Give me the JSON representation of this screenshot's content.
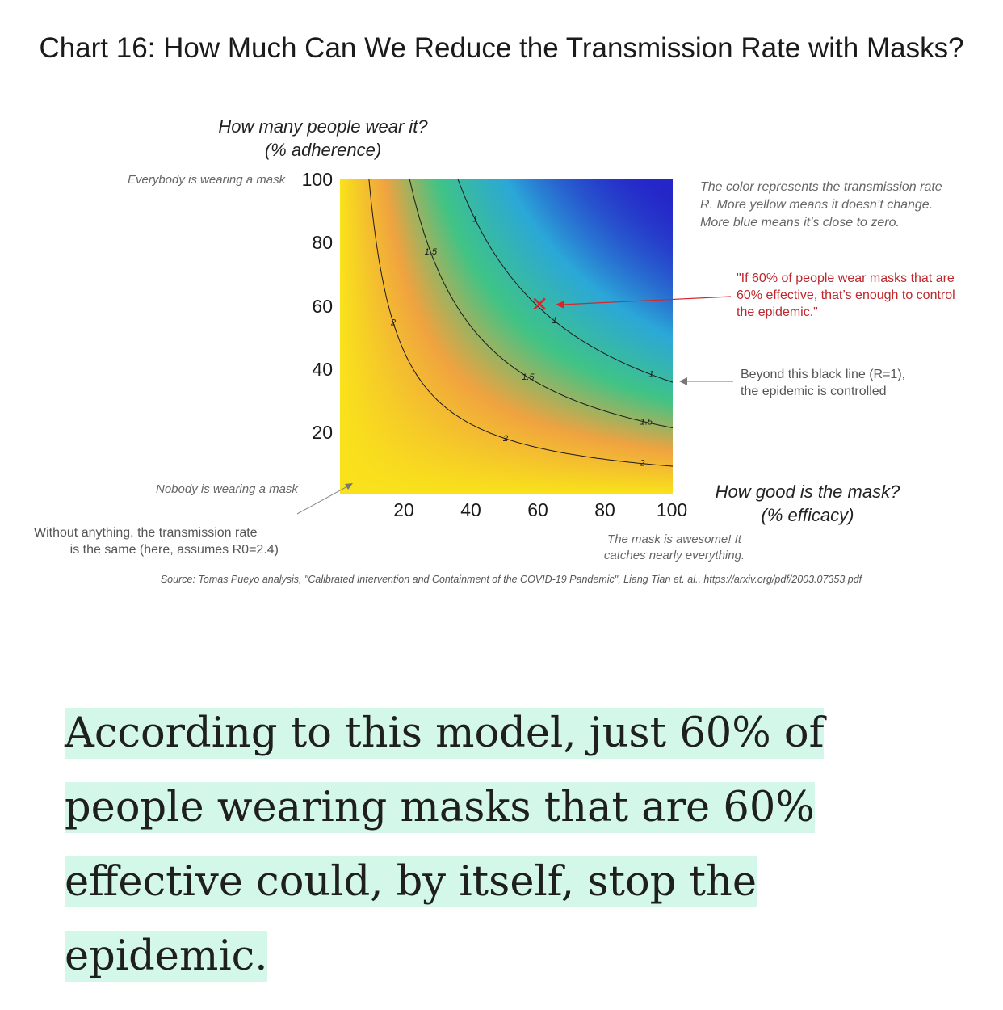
{
  "chart": {
    "title": "Chart 16: How Much Can We Reduce the Transmission Rate with Masks?",
    "y_axis_label_line1": "How many people wear it?",
    "y_axis_label_line2": "(% adherence)",
    "x_axis_label_line1": "How good is the mask?",
    "x_axis_label_line2": "(% efficacy)",
    "annotations": {
      "everybody": "Everybody is wearing a mask",
      "nobody": "Nobody is wearing a mask",
      "without_line1": "Without anything, the transmission rate",
      "without_line2": "is the same (here, assumes R0=2.4)",
      "color_line1": "The color represents the transmission rate",
      "color_line2": "R. More yellow means it doesn’t change.",
      "color_line3": "More blue means it’s close to zero.",
      "quote_line1": "\"If 60% of people wear masks that are",
      "quote_line2": "60% effective, that’s enough to control",
      "quote_line3": "the epidemic.\"",
      "beyond_line1": "Beyond this black line (R=1),",
      "beyond_line2": "the epidemic is controlled",
      "awesome_line1": "The mask is awesome! It",
      "awesome_line2": "catches nearly everything."
    },
    "source": "Source: Tomas Pueyo analysis, \"Calibrated Intervention and Containment of the COVID-19 Pandemic\", Liang Tian et. al., https://arxiv.org/pdf/2003.07353.pdf",
    "marker_symbol": "✕",
    "colors": {
      "yellow": "#f9e21b",
      "orange": "#f0a340",
      "green": "#40c486",
      "cyan": "#2ba8d8",
      "blue": "#2525c8",
      "marker": "#d6262b",
      "highlight": "#d3f8ea"
    }
  },
  "chart_data": {
    "type": "heatmap",
    "title": "Chart 16: How Much Can We Reduce the Transmission Rate with Masks?",
    "xlabel": "How good is the mask? (% efficacy)",
    "ylabel": "How many people wear it? (% adherence)",
    "xlim": [
      0,
      100
    ],
    "ylim": [
      0,
      100
    ],
    "x_ticks": [
      "20",
      "40",
      "60",
      "80",
      "100"
    ],
    "y_ticks": [
      "20",
      "40",
      "60",
      "80",
      "100"
    ],
    "R0": 2.4,
    "contour_levels": [
      {
        "label": "2",
        "value": 2
      },
      {
        "label": "1.5",
        "value": 1.5
      },
      {
        "label": "1",
        "value": 1
      }
    ],
    "highlight_point": {
      "x": 60,
      "y": 60
    },
    "colorscale": [
      "#f9e21b",
      "#f0a340",
      "#40c486",
      "#2ba8d8",
      "#2525c8"
    ]
  },
  "article": {
    "text": "According to this model, just 60% of people wearing masks that are 60% effective could, by itself, stop the epidemic."
  }
}
